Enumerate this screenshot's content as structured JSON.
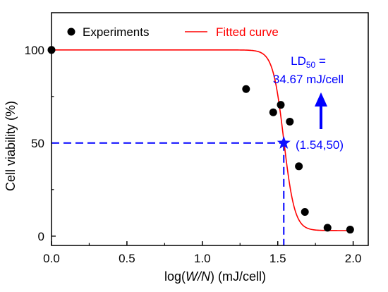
{
  "chart_data": {
    "type": "scatter",
    "xlabel": {
      "pre": "log(",
      "italic": "W/N",
      "post": ") (mJ/cell)"
    },
    "ylabel": "Cell viability (%)",
    "xlim": [
      0.0,
      2.1
    ],
    "ylim": [
      -5,
      120
    ],
    "x_ticks": [
      "0.0",
      "0.5",
      "1.0",
      "1.5",
      "2.0"
    ],
    "x_tick_values": [
      0.0,
      0.5,
      1.0,
      1.5,
      2.0
    ],
    "y_ticks": [
      "0",
      "50",
      "100"
    ],
    "y_tick_values": [
      0,
      50,
      100
    ],
    "legend": [
      {
        "label": "Experiments",
        "marker": "circle",
        "color": "#000000"
      },
      {
        "label": "Fitted curve",
        "marker": "line",
        "color": "#ff0000"
      }
    ],
    "series": [
      {
        "name": "Experiments",
        "points": [
          {
            "x": 0.0,
            "y": 100
          },
          {
            "x": 1.29,
            "y": 79
          },
          {
            "x": 1.47,
            "y": 66.5
          },
          {
            "x": 1.52,
            "y": 70.5
          },
          {
            "x": 1.58,
            "y": 61.5
          },
          {
            "x": 1.64,
            "y": 37.5
          },
          {
            "x": 1.68,
            "y": 13
          },
          {
            "x": 1.83,
            "y": 4.5
          },
          {
            "x": 1.98,
            "y": 3.5
          }
        ]
      },
      {
        "name": "Fitted curve",
        "curve": {
          "top": 100,
          "bottom": 3,
          "x50": 1.54,
          "hill": 12,
          "x_start": 0.0,
          "x_end": 1.98
        }
      }
    ],
    "ld50_point": {
      "x": 1.54,
      "y": 50
    },
    "annotations": {
      "point_label": "(1.54,50)",
      "ld_prefix": "LD",
      "ld_sub": "50",
      "ld_suffix": " =",
      "ld_value": "34.67 mJ/cell"
    },
    "colors": {
      "fit": "#ff0000",
      "points": "#000000",
      "annotation": "#0000ff",
      "star": "#1010ff"
    }
  }
}
